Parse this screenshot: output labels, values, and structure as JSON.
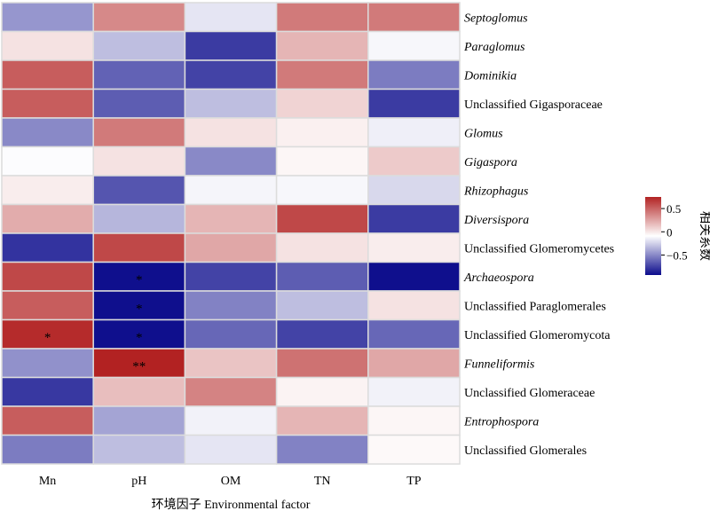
{
  "chart_data": {
    "type": "heatmap",
    "xlabel": "环境因子 Environmental factor",
    "columns": [
      "Mn",
      "pH",
      "OM",
      "TN",
      "TP"
    ],
    "rows": [
      {
        "label": "Septoglomus",
        "italic": true,
        "values": [
          -0.4,
          0.4,
          -0.1,
          0.45,
          0.45
        ],
        "sig": [
          "",
          "",
          "",
          "",
          ""
        ]
      },
      {
        "label": "Paraglomus",
        "italic": true,
        "values": [
          0.1,
          -0.25,
          -0.75,
          0.25,
          -0.03
        ],
        "sig": [
          "",
          "",
          "",
          "",
          ""
        ]
      },
      {
        "label": "Dominikia",
        "italic": true,
        "values": [
          0.55,
          -0.6,
          -0.72,
          0.45,
          -0.5
        ],
        "sig": [
          "",
          "",
          "",
          "",
          ""
        ]
      },
      {
        "label": "Unclassified Gigasporaceae",
        "italic": false,
        "values": [
          0.55,
          -0.62,
          -0.25,
          0.15,
          -0.75
        ],
        "sig": [
          "",
          "",
          "",
          "",
          ""
        ]
      },
      {
        "label": "Glomus",
        "italic": true,
        "values": [
          -0.45,
          0.45,
          0.1,
          0.05,
          -0.06
        ],
        "sig": [
          "",
          "",
          "",
          "",
          ""
        ]
      },
      {
        "label": "Gigaspora",
        "italic": true,
        "values": [
          -0.01,
          0.1,
          -0.45,
          0.03,
          0.18
        ],
        "sig": [
          "",
          "",
          "",
          "",
          ""
        ]
      },
      {
        "label": "Rhizophagus",
        "italic": true,
        "values": [
          0.06,
          -0.65,
          -0.04,
          -0.03,
          -0.15
        ],
        "sig": [
          "",
          "",
          "",
          "",
          ""
        ]
      },
      {
        "label": "Diversispora",
        "italic": true,
        "values": [
          0.28,
          -0.28,
          0.25,
          0.62,
          -0.75
        ],
        "sig": [
          "",
          "",
          "",
          "",
          ""
        ]
      },
      {
        "label": "Unclassified Glomeromycetes",
        "italic": false,
        "values": [
          -0.78,
          0.62,
          0.3,
          0.1,
          0.06
        ],
        "sig": [
          "",
          "",
          "",
          "",
          ""
        ]
      },
      {
        "label": "Archaeospora",
        "italic": true,
        "values": [
          0.62,
          -0.92,
          -0.72,
          -0.62,
          -0.92
        ],
        "sig": [
          "",
          "*",
          "",
          "",
          ""
        ]
      },
      {
        "label": "Unclassified Paraglomerales",
        "italic": false,
        "values": [
          0.55,
          -0.92,
          -0.48,
          -0.25,
          0.1
        ],
        "sig": [
          "",
          "*",
          "",
          "",
          ""
        ]
      },
      {
        "label": "Unclassified Glomeromycota",
        "italic": false,
        "values": [
          0.72,
          -0.92,
          -0.58,
          -0.72,
          -0.58
        ],
        "sig": [
          "*",
          "*",
          "",
          "",
          ""
        ]
      },
      {
        "label": "Funneliformis",
        "italic": true,
        "values": [
          -0.42,
          0.88,
          0.2,
          0.48,
          0.3
        ],
        "sig": [
          "",
          "**",
          "",
          "",
          ""
        ]
      },
      {
        "label": "Unclassified Glomeraceae",
        "italic": false,
        "values": [
          -0.76,
          0.22,
          0.42,
          0.04,
          -0.05
        ],
        "sig": [
          "",
          "",
          "",
          "",
          ""
        ]
      },
      {
        "label": "Entrophospora",
        "italic": true,
        "values": [
          0.55,
          -0.35,
          -0.05,
          0.25,
          0.03
        ],
        "sig": [
          "",
          "",
          "",
          "",
          ""
        ]
      },
      {
        "label": "Unclassified Glomerales",
        "italic": false,
        "values": [
          -0.5,
          -0.25,
          -0.1,
          -0.48,
          0.02
        ],
        "sig": [
          "",
          "",
          "",
          "",
          ""
        ]
      }
    ],
    "legend": {
      "title": "相关系数",
      "ticks": [
        0.5,
        0,
        -0.5
      ],
      "tick_labels": [
        "0.5",
        "0",
        "−0.5"
      ],
      "range": [
        -0.93,
        0.75
      ]
    },
    "colors": {
      "low": "#0c0c8c",
      "mid": "#ffffff",
      "high": "#b22222"
    }
  }
}
